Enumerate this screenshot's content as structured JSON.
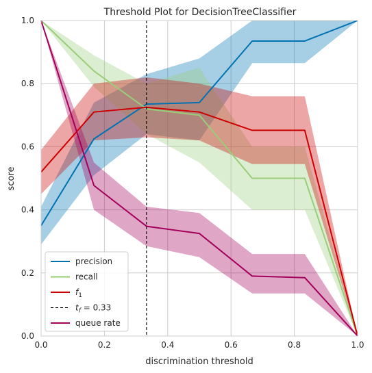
{
  "chart_data": {
    "type": "line",
    "title": "Threshold Plot for DecisionTreeClassifier",
    "xlabel": "discrimination threshold",
    "ylabel": "score",
    "xlim": [
      0,
      1
    ],
    "ylim": [
      0,
      1
    ],
    "grid": true,
    "legend_position": "bottom-left",
    "x_ticks": [
      "0.0",
      "0.2",
      "0.4",
      "0.6",
      "0.8",
      "1.0"
    ],
    "y_ticks": [
      "0.0",
      "0.2",
      "0.4",
      "0.6",
      "0.8",
      "1.0"
    ],
    "x": [
      0,
      0.167,
      0.333,
      0.5,
      0.667,
      0.833,
      1.0
    ],
    "threshold": {
      "value": 0.333,
      "legend_main": "t",
      "legend_sub": "f",
      "legend_rest": " = 0.33",
      "color": "#000000"
    },
    "series": [
      {
        "name": "precision",
        "color": "#0072B2",
        "values": [
          0.35,
          0.625,
          0.735,
          0.74,
          0.935,
          0.935,
          1.0
        ],
        "lower": [
          0.29,
          0.51,
          0.64,
          0.62,
          0.865,
          0.865,
          1.0
        ],
        "upper": [
          0.41,
          0.74,
          0.83,
          0.88,
          1.0,
          1.0,
          1.0
        ]
      },
      {
        "name": "recall",
        "color": "#9ACD7A",
        "values": [
          1.0,
          0.84,
          0.72,
          0.7,
          0.5,
          0.5,
          0.0
        ],
        "lower": [
          1.0,
          0.79,
          0.64,
          0.55,
          0.4,
          0.4,
          0.0
        ],
        "upper": [
          1.0,
          0.89,
          0.8,
          0.85,
          0.6,
          0.6,
          0.0
        ]
      },
      {
        "name": "f",
        "name_sub": "1",
        "color": "#CC0000",
        "values": [
          0.52,
          0.71,
          0.725,
          0.71,
          0.652,
          0.652,
          0.0
        ],
        "lower": [
          0.45,
          0.62,
          0.63,
          0.62,
          0.545,
          0.545,
          0.0
        ],
        "upper": [
          0.59,
          0.8,
          0.82,
          0.8,
          0.76,
          0.76,
          0.0
        ]
      },
      {
        "name": "queue rate",
        "color": "#A3005C",
        "values": [
          1.0,
          0.477,
          0.348,
          0.325,
          0.19,
          0.185,
          0.0
        ],
        "lower": [
          1.0,
          0.4,
          0.285,
          0.25,
          0.135,
          0.135,
          0.0
        ],
        "upper": [
          1.0,
          0.55,
          0.41,
          0.39,
          0.26,
          0.26,
          0.0
        ]
      }
    ]
  }
}
